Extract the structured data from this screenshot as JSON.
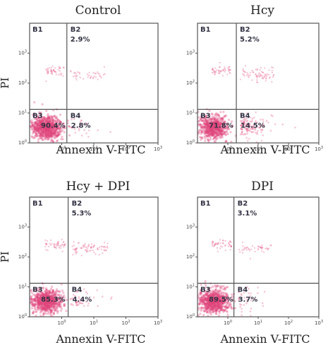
{
  "chart_data": [
    {
      "type": "scatter",
      "title": "Control",
      "xlabel": "Annexin V-FITC",
      "ylabel": "PI",
      "x_scale": "log",
      "y_scale": "log",
      "xlim": [
        1,
        10000
      ],
      "ylim": [
        1,
        10000
      ],
      "x_ticks": [
        "10^0",
        "10^1",
        "10^2",
        "10^3"
      ],
      "y_ticks": [
        "10^0",
        "10^1",
        "10^2",
        "10^3"
      ],
      "quadrants": [
        {
          "name": "B1",
          "percent": ""
        },
        {
          "name": "B2",
          "percent": "2.9%"
        },
        {
          "name": "B3",
          "percent": "90.4%"
        },
        {
          "name": "B4",
          "percent": "2.8%"
        }
      ],
      "point_color": "#e0457b"
    },
    {
      "type": "scatter",
      "title": "Hcy",
      "xlabel": "Annexin V-FITC",
      "ylabel": "",
      "x_scale": "log",
      "y_scale": "log",
      "xlim": [
        1,
        10000
      ],
      "ylim": [
        1,
        10000
      ],
      "x_ticks": [
        "10^0",
        "10^1",
        "10^2",
        "10^3"
      ],
      "y_ticks": [
        "10^0",
        "10^1",
        "10^2",
        "10^3"
      ],
      "quadrants": [
        {
          "name": "B1",
          "percent": ""
        },
        {
          "name": "B2",
          "percent": "5.2%"
        },
        {
          "name": "B3",
          "percent": "71.8%"
        },
        {
          "name": "B4",
          "percent": "14.5%"
        }
      ],
      "point_color": "#e0457b"
    },
    {
      "type": "scatter",
      "title": "Hcy + DPI",
      "xlabel": "Annexin V-FITC",
      "ylabel": "PI",
      "x_scale": "log",
      "y_scale": "log",
      "xlim": [
        1,
        10000
      ],
      "ylim": [
        1,
        10000
      ],
      "x_ticks": [
        "10^0",
        "10^1",
        "10^2",
        "10^3"
      ],
      "y_ticks": [
        "10^0",
        "10^1",
        "10^2",
        "10^3"
      ],
      "quadrants": [
        {
          "name": "B1",
          "percent": ""
        },
        {
          "name": "B2",
          "percent": "5.3%"
        },
        {
          "name": "B3",
          "percent": "85.3%"
        },
        {
          "name": "B4",
          "percent": "4.4%"
        }
      ],
      "point_color": "#e0457b"
    },
    {
      "type": "scatter",
      "title": "DPI",
      "xlabel": "Annexin V-FITC",
      "ylabel": "",
      "x_scale": "log",
      "y_scale": "log",
      "xlim": [
        1,
        10000
      ],
      "ylim": [
        1,
        10000
      ],
      "x_ticks": [
        "10^0",
        "10^1",
        "10^2",
        "10^3"
      ],
      "y_ticks": [
        "10^0",
        "10^1",
        "10^2",
        "10^3"
      ],
      "quadrants": [
        {
          "name": "B1",
          "percent": ""
        },
        {
          "name": "B2",
          "percent": "3.1%"
        },
        {
          "name": "B3",
          "percent": "89.5%"
        },
        {
          "name": "B4",
          "percent": "3.7%"
        }
      ],
      "point_color": "#e0457b"
    }
  ]
}
